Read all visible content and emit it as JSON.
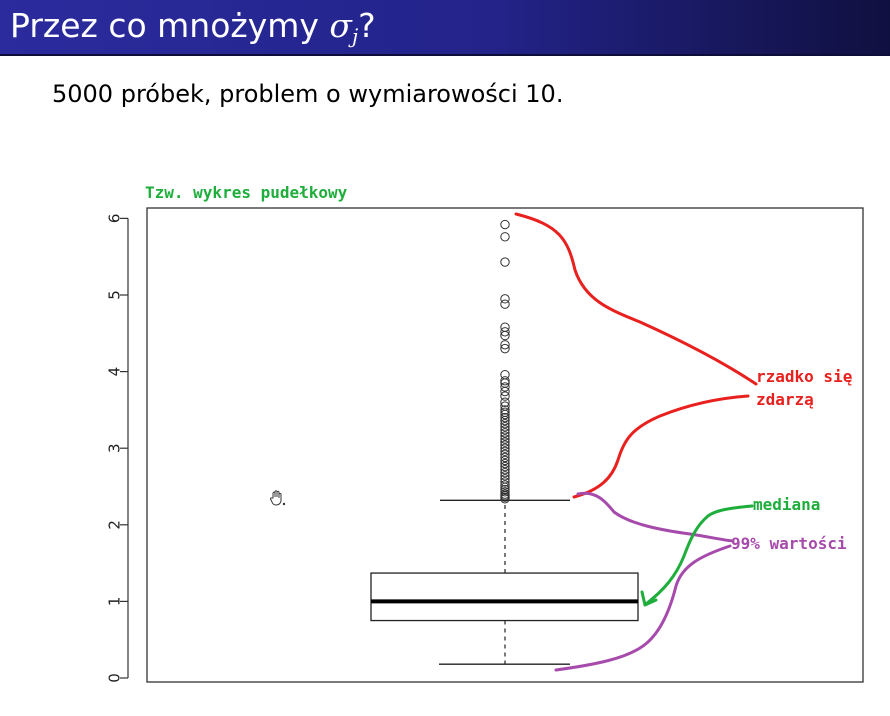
{
  "title": {
    "prefix": "Przez co mnożymy ",
    "symbol": "σ",
    "subscript": "j",
    "suffix": "?"
  },
  "subtitle": "5000 próbek, problem o wymiarowości 10.",
  "annotations": {
    "boxplot_label": "Tzw. wykres pudełkowy",
    "rare_line1": "rzadko się",
    "rare_line2": "zdarzą",
    "median": "mediana",
    "percent99": "99% wartości"
  },
  "colors": {
    "red": "#e8201e",
    "green": "#1fae3c",
    "purple": "#a64aab",
    "title_bg": "#2b2b9e"
  },
  "icons": {
    "cursor": "hand-cursor-icon"
  },
  "chart_data": {
    "type": "box",
    "ylim": [
      0,
      6.2
    ],
    "yticks": [
      "0",
      "1",
      "2",
      "3",
      "4",
      "5",
      "6"
    ],
    "whisker_low": 0.18,
    "q1": 0.75,
    "median": 1.0,
    "q3": 1.37,
    "whisker_high": 2.32,
    "outliers": [
      5.92,
      5.76,
      5.43,
      4.95,
      4.88,
      4.58,
      4.52,
      4.47,
      4.35,
      4.3,
      3.96,
      3.88,
      3.85,
      3.8,
      3.74,
      3.68,
      3.6,
      3.55,
      3.5,
      3.47,
      3.44,
      3.4,
      3.36,
      3.32,
      3.28,
      3.24,
      3.2,
      3.16,
      3.12,
      3.08,
      3.04,
      3.0,
      2.96,
      2.92,
      2.88,
      2.84,
      2.8,
      2.76,
      2.72,
      2.68,
      2.64,
      2.6,
      2.56,
      2.52,
      2.49,
      2.46,
      2.43,
      2.4,
      2.38,
      2.36,
      2.34
    ]
  }
}
